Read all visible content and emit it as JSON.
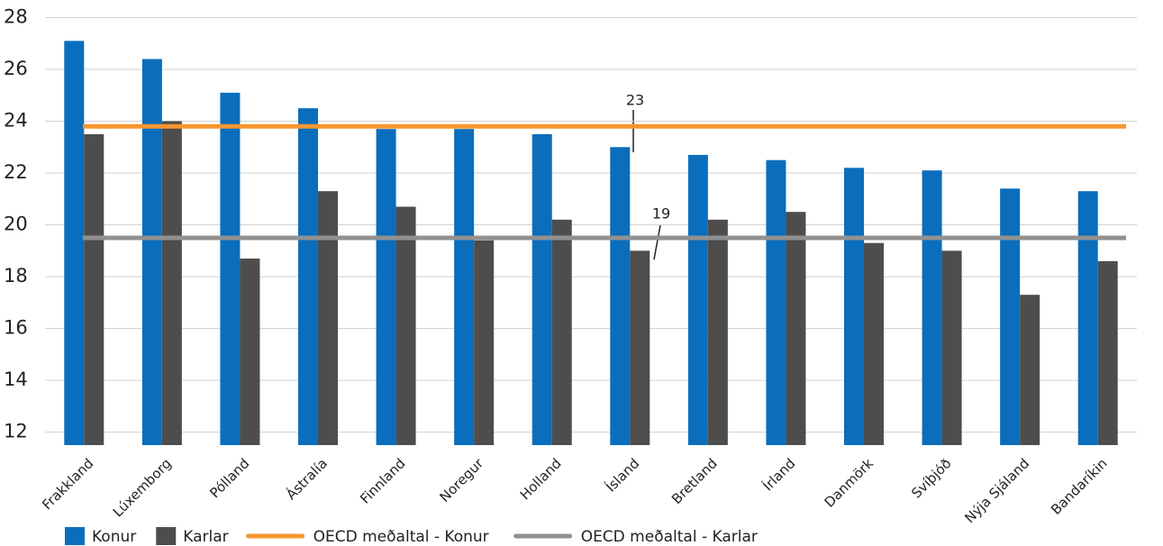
{
  "chart_data": {
    "type": "bar",
    "categories": [
      "Frakkland",
      "Lúxemborg",
      "Pólland",
      "Ástralía",
      "Finnland",
      "Noregur",
      "Holland",
      "Ísland",
      "Bretland",
      "Írland",
      "Danmörk",
      "Svíþjóð",
      "Nýja Sjáland",
      "Bandaríkin"
    ],
    "series": [
      {
        "name": "Konur",
        "color": "#0a6ebd",
        "values": [
          27.1,
          26.4,
          25.1,
          24.5,
          23.7,
          23.7,
          23.5,
          23.0,
          22.7,
          22.5,
          22.2,
          22.1,
          21.4,
          21.3
        ]
      },
      {
        "name": "Karlar",
        "color": "#4d4d4d",
        "values": [
          23.5,
          24.0,
          18.7,
          21.3,
          20.7,
          19.4,
          20.2,
          19.0,
          20.2,
          20.5,
          19.3,
          19.0,
          17.3,
          18.6
        ]
      }
    ],
    "reference_lines": [
      {
        "name": "OECD meðaltal - Konur",
        "color": "#f7962e",
        "value": 23.8
      },
      {
        "name": "OECD meðaltal - Karlar",
        "color": "#919191",
        "value": 19.5
      }
    ],
    "annotations": [
      "23",
      "19"
    ],
    "ylim": [
      11.5,
      28.4
    ],
    "yticks": [
      12,
      14,
      16,
      18,
      20,
      22,
      24,
      26,
      28
    ],
    "grid": true
  }
}
